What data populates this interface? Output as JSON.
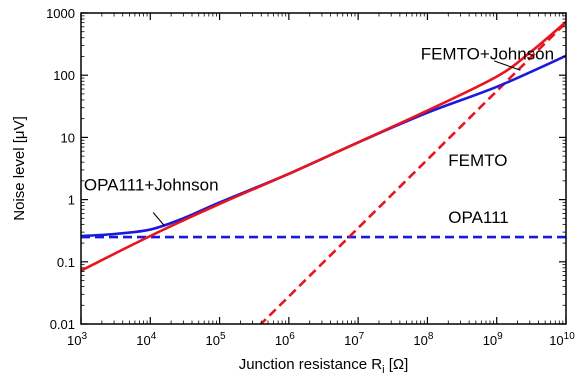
{
  "chart_data": {
    "type": "line",
    "x_scale": "log",
    "y_scale": "log",
    "xlim": [
      1000,
      10000000000
    ],
    "ylim": [
      0.01,
      1000
    ],
    "grid": false,
    "xlabel": "Junction resistance R",
    "xlabel_sub": "i",
    "xlabel_unit": " [Ω]",
    "ylabel": "Noise level [μV]",
    "x_ticks": [
      {
        "base": "10",
        "exp": "3"
      },
      {
        "base": "10",
        "exp": "4"
      },
      {
        "base": "10",
        "exp": "5"
      },
      {
        "base": "10",
        "exp": "6"
      },
      {
        "base": "10",
        "exp": "7"
      },
      {
        "base": "10",
        "exp": "8"
      },
      {
        "base": "10",
        "exp": "9"
      },
      {
        "base": "10",
        "exp": "10"
      }
    ],
    "y_tick_labels": [
      "0.01",
      "0.1",
      "1",
      "10",
      "100",
      "1000"
    ],
    "colors": {
      "blue": "#1a1adc",
      "red": "#e8141e"
    },
    "series": [
      {
        "name": "OPA111",
        "style": "dashed",
        "color": "blue",
        "x": [
          1000,
          10000000000
        ],
        "y": [
          0.25,
          0.25
        ]
      },
      {
        "name": "FEMTO",
        "style": "dashed",
        "color": "red",
        "x": [
          100000,
          10000000000
        ],
        "y": [
          0.0022,
          700
        ]
      },
      {
        "name": "OPA111+Johnson",
        "style": "solid",
        "color": "blue",
        "x": [
          1000,
          3000,
          10000,
          30000,
          100000,
          1000000,
          10000000,
          100000000,
          1000000000,
          10000000000
        ],
        "y": [
          0.26,
          0.28,
          0.33,
          0.5,
          0.9,
          2.6,
          8.3,
          25,
          65,
          205
        ]
      },
      {
        "name": "FEMTO+Johnson",
        "style": "solid",
        "color": "red",
        "x": [
          1000,
          10000,
          100000,
          1000000,
          10000000,
          100000000,
          1000000000,
          3000000000,
          10000000000
        ],
        "y": [
          0.072,
          0.26,
          0.85,
          2.6,
          8.3,
          27,
          95,
          230,
          720
        ]
      }
    ],
    "annotations": [
      {
        "text": "FEMTO+Johnson",
        "x": 80000000.0,
        "y": 180,
        "pointer": {
          "from": [
            920000000.0,
            170
          ],
          "to": [
            2200000000.0,
            120
          ]
        }
      },
      {
        "text": "FEMTO",
        "x": 200000000.0,
        "y": 3.5
      },
      {
        "text": "OPA111",
        "x": 200000000.0,
        "y": 0.42
      },
      {
        "text": "OPA111+Johnson",
        "x": 1100.0,
        "y": 1.4,
        "pointer": {
          "from": [
            11000.0,
            0.62
          ],
          "to": [
            16000.0,
            0.38
          ]
        }
      }
    ]
  }
}
